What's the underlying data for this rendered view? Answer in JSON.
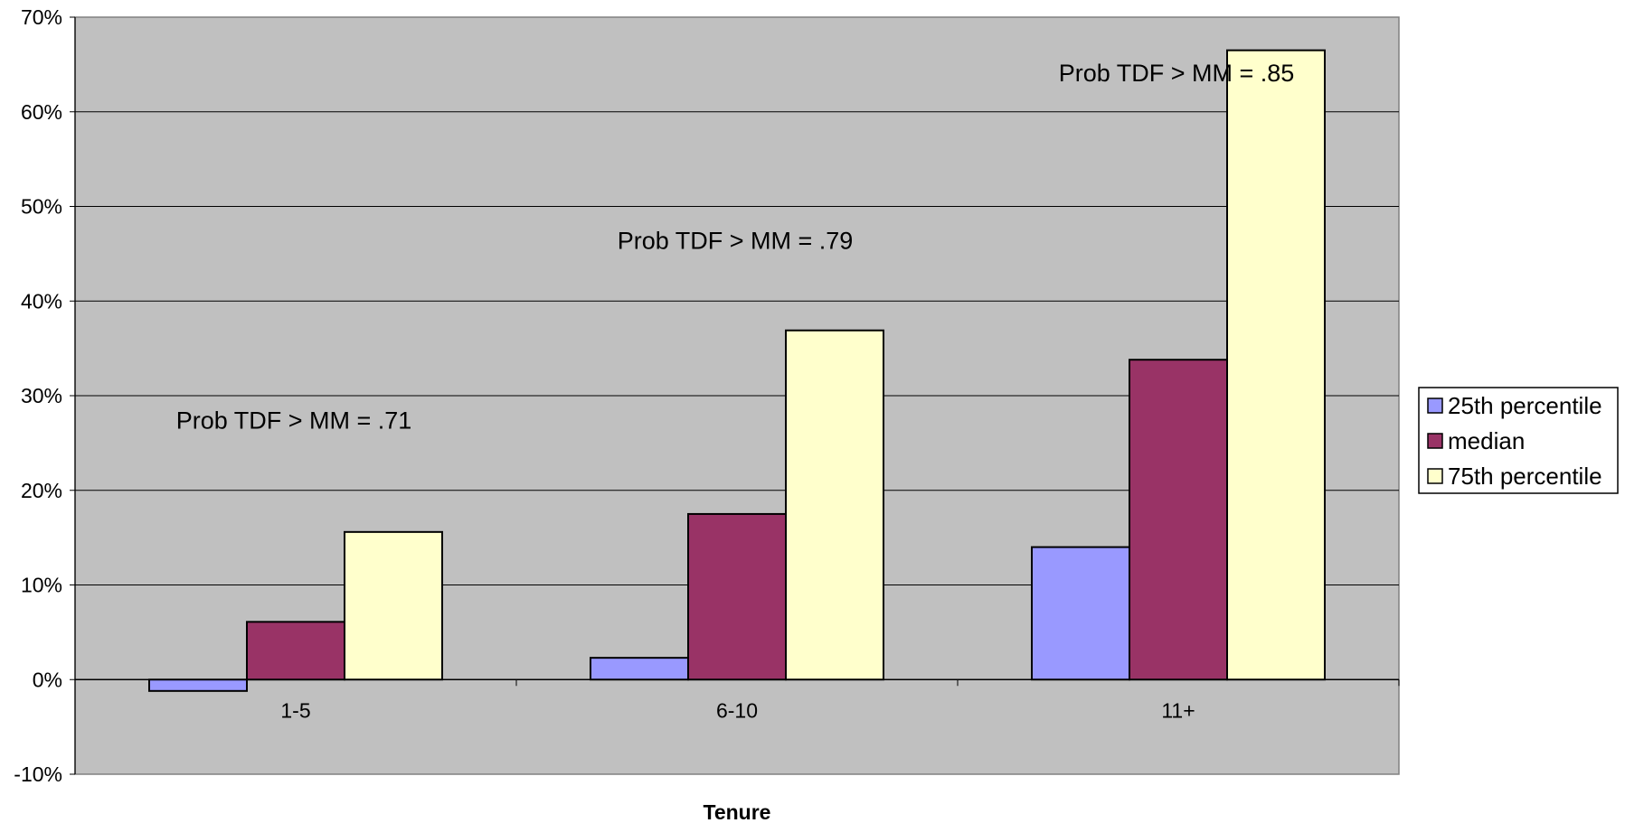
{
  "chart_data": {
    "type": "bar",
    "title": "",
    "xlabel": "Tenure",
    "ylabel": "",
    "categories": [
      "1-5",
      "6-10",
      "11+"
    ],
    "ylim": [
      -10,
      70
    ],
    "yticks": [
      -10,
      0,
      10,
      20,
      30,
      40,
      50,
      60,
      70
    ],
    "ytick_suffix": "%",
    "grid": true,
    "legend_position": "right",
    "plot_background": "#c0c0c0",
    "series": [
      {
        "name": "25th percentile",
        "color": "#9999ff",
        "values": [
          -1.2,
          2.3,
          14.0
        ]
      },
      {
        "name": "median",
        "color": "#993366",
        "values": [
          6.1,
          17.5,
          33.8
        ]
      },
      {
        "name": "75th percentile",
        "color": "#ffffcc",
        "values": [
          15.6,
          36.9,
          66.5
        ]
      }
    ],
    "annotations": [
      {
        "text": "Prob TDF > MM = .71",
        "category": "1-5",
        "y": 26.5
      },
      {
        "text": "Prob TDF > MM = .79",
        "category": "6-10",
        "y": 45.5
      },
      {
        "text": "Prob TDF > MM = .85",
        "category": "11+",
        "y": 63.2
      }
    ]
  }
}
